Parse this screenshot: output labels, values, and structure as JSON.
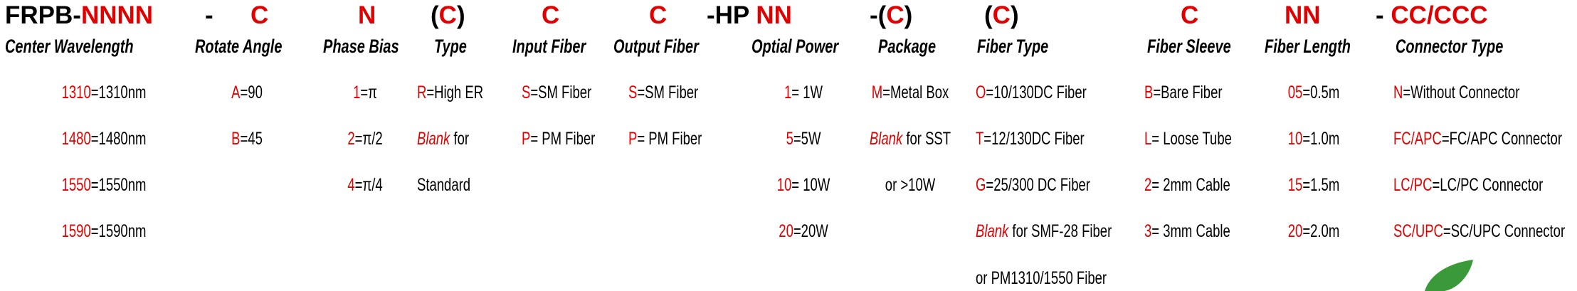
{
  "header": [
    [
      {
        "t": "FRPB-",
        "c": "k"
      },
      {
        "t": "NNNN",
        "c": "r"
      }
    ],
    [
      {
        "t": "-",
        "c": "k"
      }
    ],
    [
      {
        "t": "C",
        "c": "r"
      }
    ],
    [
      {
        "t": "N",
        "c": "r"
      }
    ],
    [
      {
        "t": "(",
        "c": "k"
      },
      {
        "t": "C",
        "c": "r"
      },
      {
        "t": ")",
        "c": "k"
      }
    ],
    [
      {
        "t": "C",
        "c": "r"
      }
    ],
    [
      {
        "t": "C",
        "c": "r"
      }
    ],
    [
      {
        "t": "-HP ",
        "c": "k"
      },
      {
        "t": "NN",
        "c": "r"
      }
    ],
    [
      {
        "t": "-(",
        "c": "k"
      },
      {
        "t": "C",
        "c": "r"
      },
      {
        "t": ")",
        "c": "k"
      }
    ],
    [
      {
        "t": "(",
        "c": "k"
      },
      {
        "t": "C",
        "c": "r"
      },
      {
        "t": ")",
        "c": "k"
      }
    ],
    [
      {
        "t": "C",
        "c": "r"
      }
    ],
    [
      {
        "t": "NN",
        "c": "r"
      }
    ],
    [
      {
        "t": "- ",
        "c": "k"
      },
      {
        "t": "CC/CCC",
        "c": "r"
      }
    ]
  ],
  "columns": [
    {
      "title": "Center Wavelength",
      "items": [
        [
          {
            "t": "1310",
            "c": "r"
          },
          {
            "t": "=1310nm",
            "c": "k"
          }
        ],
        [
          {
            "t": "1480",
            "c": "r"
          },
          {
            "t": "=1480nm",
            "c": "k"
          }
        ],
        [
          {
            "t": "1550",
            "c": "r"
          },
          {
            "t": "=1550nm",
            "c": "k"
          }
        ],
        [
          {
            "t": "1590",
            "c": "r"
          },
          {
            "t": "=1590nm",
            "c": "k"
          }
        ]
      ]
    },
    {
      "title": "Rotate Angle",
      "items": [
        [
          {
            "t": "A",
            "c": "r"
          },
          {
            "t": "=90",
            "c": "k"
          }
        ],
        [
          {
            "t": "B",
            "c": "r"
          },
          {
            "t": "=45",
            "c": "k"
          }
        ]
      ]
    },
    {
      "title": "Phase Bias",
      "items": [
        [
          {
            "t": "1",
            "c": "r"
          },
          {
            "t": "=π",
            "c": "k"
          }
        ],
        [
          {
            "t": "2",
            "c": "r"
          },
          {
            "t": "=π/2",
            "c": "k"
          }
        ],
        [
          {
            "t": "4",
            "c": "r"
          },
          {
            "t": "=π/4",
            "c": "k"
          }
        ]
      ]
    },
    {
      "title": "Type",
      "items": [
        [
          {
            "t": "R",
            "c": "r"
          },
          {
            "t": "=High ER",
            "c": "k"
          }
        ],
        [
          {
            "t": "Blank",
            "c": "ri"
          },
          {
            "t": " for",
            "c": "k"
          }
        ],
        [
          {
            "t": "Standard",
            "c": "k"
          }
        ]
      ]
    },
    {
      "title": "Input Fiber",
      "items": [
        [
          {
            "t": "S",
            "c": "r"
          },
          {
            "t": "=SM Fiber",
            "c": "k"
          }
        ],
        [
          {
            "t": "P",
            "c": "r"
          },
          {
            "t": "= PM Fiber",
            "c": "k"
          }
        ]
      ]
    },
    {
      "title": "Output Fiber",
      "items": [
        [
          {
            "t": "S",
            "c": "r"
          },
          {
            "t": "=SM Fiber",
            "c": "k"
          }
        ],
        [
          {
            "t": "P",
            "c": "r"
          },
          {
            "t": "= PM Fiber",
            "c": "k"
          }
        ]
      ]
    },
    {
      "title": "Optial Power",
      "items": [
        [
          {
            "t": "1",
            "c": "r"
          },
          {
            "t": "= 1W",
            "c": "k"
          }
        ],
        [
          {
            "t": "5",
            "c": "r"
          },
          {
            "t": "=5W",
            "c": "k"
          }
        ],
        [
          {
            "t": "10",
            "c": "r"
          },
          {
            "t": "= 10W",
            "c": "k"
          }
        ],
        [
          {
            "t": "20",
            "c": "r"
          },
          {
            "t": "=20W",
            "c": "k"
          }
        ]
      ]
    },
    {
      "title": "Package",
      "items": [
        [
          {
            "t": "M",
            "c": "r"
          },
          {
            "t": "=Metal Box",
            "c": "k"
          }
        ],
        [
          {
            "t": "Blank",
            "c": "ri"
          },
          {
            "t": " for SST",
            "c": "k"
          }
        ],
        [
          {
            "t": "or >10W",
            "c": "k"
          }
        ]
      ]
    },
    {
      "title": "Fiber Type",
      "items": [
        [
          {
            "t": "O",
            "c": "r"
          },
          {
            "t": "=10/130DC Fiber",
            "c": "k"
          }
        ],
        [
          {
            "t": "T",
            "c": "r"
          },
          {
            "t": "=12/130DC Fiber",
            "c": "k"
          }
        ],
        [
          {
            "t": "G",
            "c": "r"
          },
          {
            "t": "=25/300 DC Fiber",
            "c": "k"
          }
        ],
        [
          {
            "t": "Blank",
            "c": "ri"
          },
          {
            "t": " for SMF-28 Fiber",
            "c": "k"
          }
        ],
        [
          {
            "t": "or PM1310/1550 Fiber",
            "c": "k"
          }
        ]
      ]
    },
    {
      "title": "Fiber Sleeve",
      "items": [
        [
          {
            "t": "B",
            "c": "r"
          },
          {
            "t": "=Bare Fiber",
            "c": "k"
          }
        ],
        [
          {
            "t": "L",
            "c": "r"
          },
          {
            "t": "= Loose Tube",
            "c": "k"
          }
        ],
        [
          {
            "t": "2",
            "c": "r"
          },
          {
            "t": "= 2mm Cable",
            "c": "k"
          }
        ],
        [
          {
            "t": "3",
            "c": "r"
          },
          {
            "t": "= 3mm Cable",
            "c": "k"
          }
        ]
      ]
    },
    {
      "title": "Fiber Length",
      "items": [
        [
          {
            "t": "05",
            "c": "r"
          },
          {
            "t": "=0.5m",
            "c": "k"
          }
        ],
        [
          {
            "t": "10",
            "c": "r"
          },
          {
            "t": "=1.0m",
            "c": "k"
          }
        ],
        [
          {
            "t": "15",
            "c": "r"
          },
          {
            "t": "=1.5m",
            "c": "k"
          }
        ],
        [
          {
            "t": "20",
            "c": "r"
          },
          {
            "t": "=2.0m",
            "c": "k"
          }
        ]
      ]
    },
    {
      "title": "Connector Type",
      "items": [
        [
          {
            "t": "N",
            "c": "r"
          },
          {
            "t": "=Without Connector",
            "c": "k"
          }
        ],
        [
          {
            "t": "FC/APC",
            "c": "r"
          },
          {
            "t": "=FC/APC Connector",
            "c": "k"
          }
        ],
        [
          {
            "t": "LC/PC",
            "c": "r"
          },
          {
            "t": "=LC/PC Connector",
            "c": "k"
          }
        ],
        [
          {
            "t": "SC/UPC",
            "c": "r"
          },
          {
            "t": "=SC/UPC Connector",
            "c": "k"
          }
        ]
      ]
    }
  ]
}
